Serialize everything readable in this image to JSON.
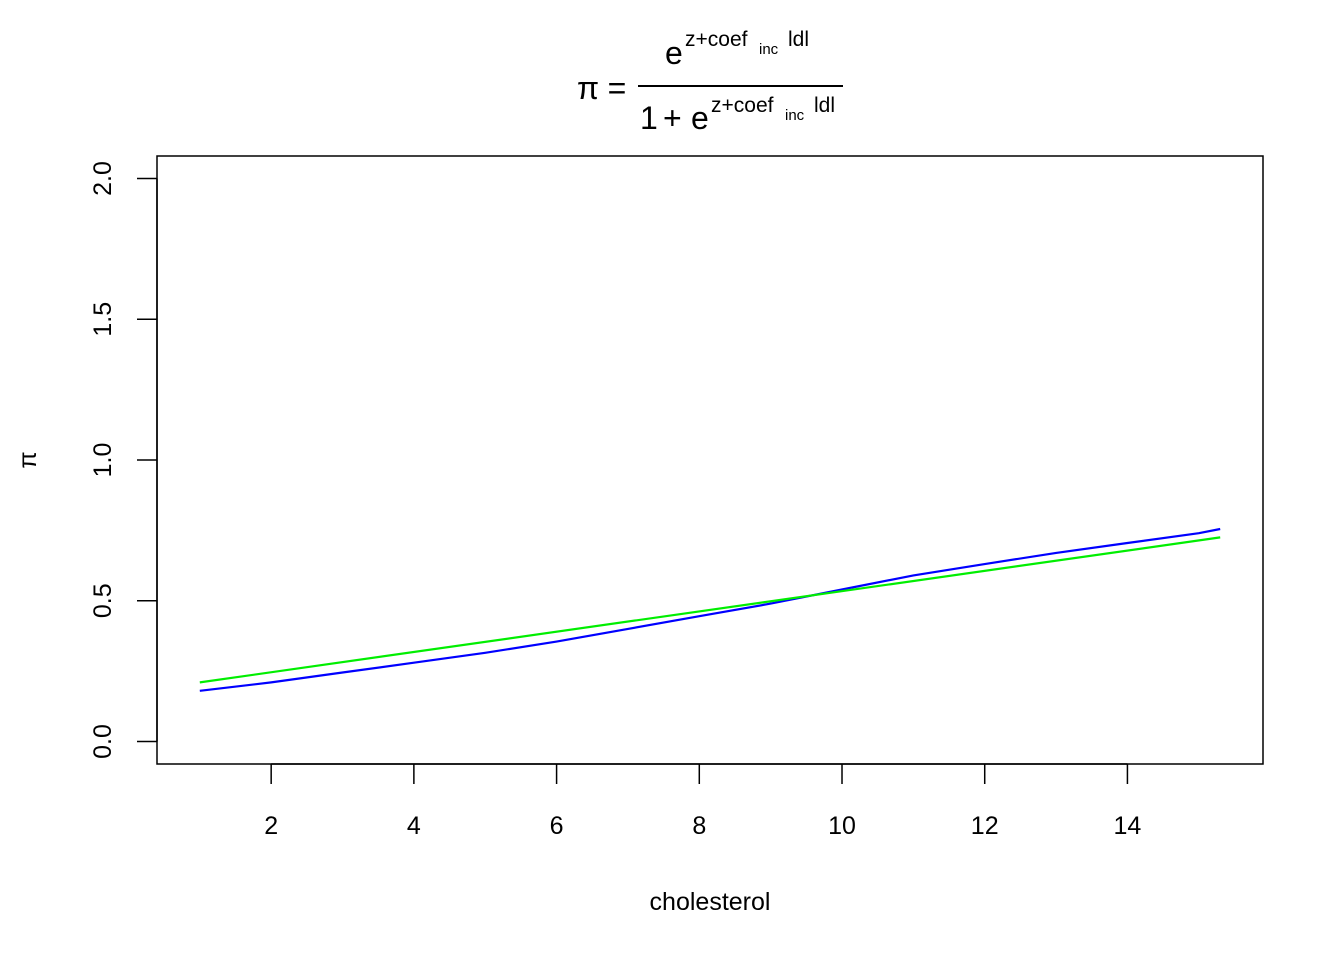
{
  "chart_data": {
    "type": "line",
    "title": {
      "lhs": "π",
      "equals": "=",
      "numerator_base": "e",
      "exponent_prefix": "z+coef",
      "exponent_subscript": "inc",
      "exponent_suffix": "ldl",
      "denominator_prefix": "1",
      "denominator_plus": "+",
      "denominator_base": "e"
    },
    "xlabel": "cholesterol",
    "ylabel": "π",
    "xlim": [
      0.4,
      15.9
    ],
    "ylim": [
      -0.08,
      2.08
    ],
    "x_ticks": [
      2,
      4,
      6,
      8,
      10,
      12,
      14
    ],
    "x_tick_labels": [
      "2",
      "4",
      "6",
      "8",
      "10",
      "12",
      "14"
    ],
    "y_ticks": [
      0.0,
      0.5,
      1.0,
      1.5,
      2.0
    ],
    "y_tick_labels": [
      "0.0",
      "0.5",
      "1.0",
      "1.5",
      "2.0"
    ],
    "grid": false,
    "legend": "none",
    "series": [
      {
        "color": "#0000ff",
        "x": [
          1.0,
          2.0,
          3.0,
          4.0,
          5.0,
          6.0,
          7.0,
          8.0,
          9.0,
          10.0,
          11.0,
          12.0,
          13.0,
          14.0,
          15.0,
          15.3
        ],
        "y": [
          0.18,
          0.21,
          0.245,
          0.28,
          0.315,
          0.355,
          0.4,
          0.445,
          0.49,
          0.54,
          0.59,
          0.63,
          0.67,
          0.705,
          0.74,
          0.755
        ]
      },
      {
        "color": "#00ee00",
        "x": [
          1.0,
          15.3
        ],
        "y": [
          0.21,
          0.725
        ]
      }
    ]
  }
}
